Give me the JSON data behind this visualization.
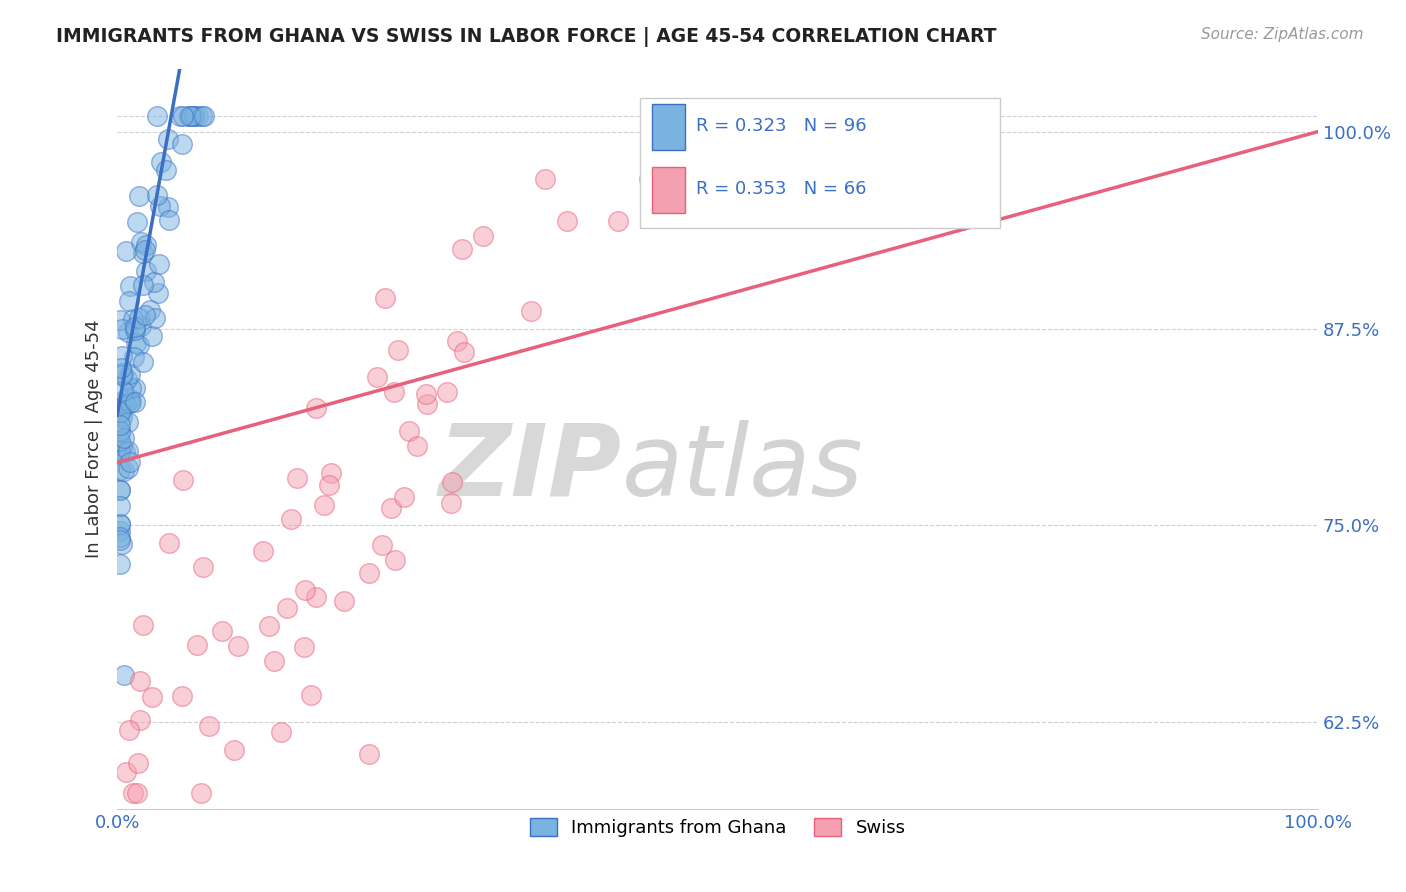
{
  "title": "IMMIGRANTS FROM GHANA VS SWISS IN LABOR FORCE | AGE 45-54 CORRELATION CHART",
  "source": "Source: ZipAtlas.com",
  "ylabel": "In Labor Force | Age 45-54",
  "legend_bottom": [
    "Immigrants from Ghana",
    "Swiss"
  ],
  "r_ghana": 0.323,
  "n_ghana": 96,
  "r_swiss": 0.353,
  "n_swiss": 66,
  "color_ghana": "#7ab3e0",
  "color_swiss": "#f4a0b0",
  "color_ghana_line": "#3a6fc4",
  "color_swiss_line": "#e8607a",
  "color_r_text": "#3a6fc4",
  "background_color": "#ffffff",
  "xlim": [
    0.0,
    1.0
  ],
  "ylim": [
    0.57,
    1.04
  ],
  "yticks": [
    0.625,
    0.75,
    0.875,
    1.0
  ],
  "ytick_labels": [
    "62.5%",
    "75.0%",
    "87.5%",
    "100.0%"
  ],
  "xticks": [
    0.0,
    1.0
  ],
  "xtick_labels": [
    "0.0%",
    "100.0%"
  ]
}
